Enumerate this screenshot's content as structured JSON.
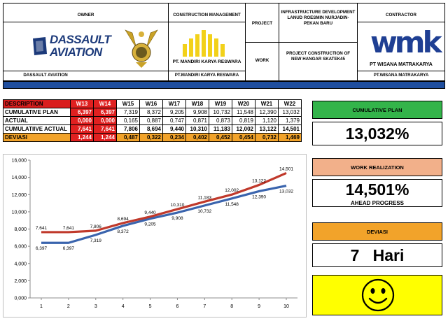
{
  "header": {
    "owner_label": "OWNER",
    "owner_name": "DASSAULT AVIATION",
    "logo_line1": "DASSAULT",
    "logo_line2": "AVIATION",
    "cm_label": "CONSTRUCTION MANAGEMENT",
    "cm_name_logo": "PT. MANDIRI KARYA RESWARA",
    "cm_name": "PT.MANDIRI KARYA RESWARA",
    "project_label": "PROJECT",
    "work_label": "WORK",
    "project_value": "INFRASTRUCTURE DEVELOPMENT LANUD ROESMIN NURJADIN-PEKAN BARU",
    "work_value": "PROJECT CONSTRUCTION OF NEW HANGAR SKATEK45",
    "contractor_label": "CONTRACTOR",
    "contractor_logo": "wmk",
    "contractor_name_logo": "PT WISANA MATRAKARYA",
    "contractor_name": "PT.WISANA MATRAKARYA"
  },
  "table": {
    "headers": [
      "DESCRIPTION",
      "W13",
      "W14",
      "W15",
      "W16",
      "W17",
      "W18",
      "W19",
      "W20",
      "W21",
      "W22"
    ],
    "rows": [
      {
        "label": "CUMULATIVE PLAN",
        "values": [
          "6,397",
          "6,397",
          "7,319",
          "8,372",
          "9,205",
          "9,908",
          "10,732",
          "11,548",
          "12,390",
          "13,032"
        ]
      },
      {
        "label": "ACTUAL",
        "values": [
          "0,000",
          "0,000",
          "0,165",
          "0,887",
          "0,747",
          "0,871",
          "0,873",
          "0,819",
          "1,120",
          "1,379"
        ]
      },
      {
        "label": "CUMULATIIVE ACTUAL",
        "values": [
          "7,641",
          "7,641",
          "7,806",
          "8,694",
          "9,440",
          "10,310",
          "11,183",
          "12,002",
          "13,122",
          "14,501"
        ]
      },
      {
        "label": "DEVIASI",
        "values": [
          "1,244",
          "1,244",
          "0,487",
          "0,322",
          "0,234",
          "0,402",
          "0,452",
          "0,454",
          "0,732",
          "1,469"
        ]
      }
    ]
  },
  "panels": {
    "plan_title": "CUMULATIVE PLAN",
    "plan_value": "13,032%",
    "real_title": "WORK REALIZATION",
    "real_value": "14,501%",
    "real_status": "AHEAD PROGRESS",
    "dev_title": "DEVIASI",
    "dev_value": "7   Hari",
    "smiley_icon": "smiley-face-icon"
  },
  "colors": {
    "plan_title_bg": "#33b44a",
    "real_title_bg": "#f2b08a",
    "dev_title_bg": "#f2a32a",
    "smiley_bg": "#ffff00",
    "blue_bar": "#1f4e9e",
    "plan_line": "#3a64ad",
    "actual_line": "#c0392b"
  },
  "chart_data": {
    "type": "line",
    "x": [
      1,
      2,
      3,
      4,
      5,
      6,
      7,
      8,
      9,
      10
    ],
    "ylim": [
      0,
      16000
    ],
    "yticks": [
      "0,000",
      "2,000",
      "4,000",
      "6,000",
      "8,000",
      "10,000",
      "12,000",
      "14,000",
      "16,000"
    ],
    "grid": false,
    "series": [
      {
        "values": [
          6397,
          6397,
          7319,
          8372,
          9205,
          9908,
          10732,
          11548,
          12390,
          13032
        ],
        "labels": [
          "6,397",
          "6,397",
          "7,319",
          "8,372",
          "9,205",
          "9,908",
          "10,732",
          "11,548",
          "12,390",
          "13,032"
        ]
      },
      {
        "values": [
          7641,
          7641,
          7806,
          8694,
          9440,
          10310,
          11183,
          12002,
          13122,
          14501
        ],
        "labels": [
          "7,641",
          "7,641",
          "7,806",
          "8,694",
          "9,440",
          "10,310",
          "11,183",
          "12,002",
          "13,122",
          "14,501"
        ]
      }
    ]
  }
}
